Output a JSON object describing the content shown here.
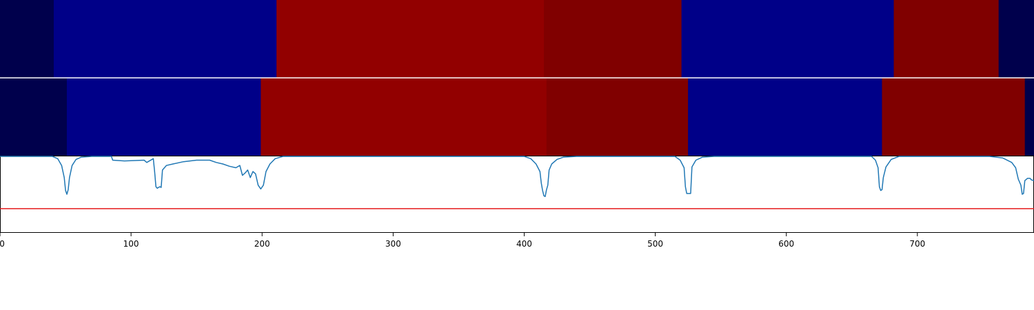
{
  "chart_data": [
    {
      "type": "heatmap",
      "title": "",
      "xlim": [
        0,
        789
      ],
      "segments": [
        {
          "start": 0,
          "end": 41,
          "color": "#00004c"
        },
        {
          "start": 41,
          "end": 211,
          "color": "#000088"
        },
        {
          "start": 211,
          "end": 415,
          "color": "#920000"
        },
        {
          "start": 415,
          "end": 520,
          "color": "#800000"
        },
        {
          "start": 520,
          "end": 682,
          "color": "#000088"
        },
        {
          "start": 682,
          "end": 762,
          "color": "#800000"
        },
        {
          "start": 762,
          "end": 789,
          "color": "#00004c"
        }
      ]
    },
    {
      "type": "heatmap",
      "title": "",
      "xlim": [
        0,
        789
      ],
      "segments": [
        {
          "start": 0,
          "end": 51,
          "color": "#00004c"
        },
        {
          "start": 51,
          "end": 199,
          "color": "#000088"
        },
        {
          "start": 199,
          "end": 417,
          "color": "#920000"
        },
        {
          "start": 417,
          "end": 525,
          "color": "#800000"
        },
        {
          "start": 525,
          "end": 673,
          "color": "#000088"
        },
        {
          "start": 673,
          "end": 782,
          "color": "#800000"
        },
        {
          "start": 782,
          "end": 789,
          "color": "#00004c"
        }
      ]
    },
    {
      "type": "line",
      "title": "",
      "xlabel": "",
      "ylabel": "",
      "xlim": [
        0,
        789
      ],
      "ylim": [
        0,
        1
      ],
      "grid": false,
      "x_ticks": [
        "0",
        "100",
        "200",
        "300",
        "400",
        "500",
        "600",
        "700"
      ],
      "x_tick_values": [
        0,
        100,
        200,
        300,
        400,
        500,
        600,
        700
      ],
      "threshold": 0.31,
      "threshold_color": "#e41a1c",
      "series": [
        {
          "color": "#1f77b4",
          "points": [
            [
              0,
              1.0
            ],
            [
              40,
              1.0
            ],
            [
              44,
              0.97
            ],
            [
              47,
              0.88
            ],
            [
              49,
              0.72
            ],
            [
              50,
              0.55
            ],
            [
              51,
              0.5
            ],
            [
              52,
              0.56
            ],
            [
              53,
              0.72
            ],
            [
              55,
              0.88
            ],
            [
              58,
              0.96
            ],
            [
              62,
              0.99
            ],
            [
              70,
              1.0
            ],
            [
              85,
              1.0
            ],
            [
              86,
              0.95
            ],
            [
              95,
              0.94
            ],
            [
              110,
              0.95
            ],
            [
              112,
              0.92
            ],
            [
              117,
              0.97
            ],
            [
              118,
              0.8
            ],
            [
              119,
              0.6
            ],
            [
              120,
              0.58
            ],
            [
              122,
              0.6
            ],
            [
              123,
              0.59
            ],
            [
              124,
              0.82
            ],
            [
              127,
              0.88
            ],
            [
              132,
              0.9
            ],
            [
              140,
              0.93
            ],
            [
              150,
              0.95
            ],
            [
              160,
              0.95
            ],
            [
              165,
              0.92
            ],
            [
              170,
              0.9
            ],
            [
              175,
              0.87
            ],
            [
              180,
              0.85
            ],
            [
              183,
              0.88
            ],
            [
              185,
              0.75
            ],
            [
              187,
              0.78
            ],
            [
              189,
              0.82
            ],
            [
              191,
              0.72
            ],
            [
              193,
              0.8
            ],
            [
              195,
              0.77
            ],
            [
              197,
              0.62
            ],
            [
              199,
              0.57
            ],
            [
              201,
              0.62
            ],
            [
              203,
              0.8
            ],
            [
              206,
              0.9
            ],
            [
              210,
              0.97
            ],
            [
              216,
              1.0
            ],
            [
              380,
              1.0
            ],
            [
              400,
              1.0
            ],
            [
              405,
              0.97
            ],
            [
              409,
              0.9
            ],
            [
              412,
              0.8
            ],
            [
              413,
              0.65
            ],
            [
              414,
              0.55
            ],
            [
              415,
              0.48
            ],
            [
              416,
              0.47
            ],
            [
              417,
              0.56
            ],
            [
              418,
              0.62
            ],
            [
              419,
              0.82
            ],
            [
              421,
              0.9
            ],
            [
              425,
              0.96
            ],
            [
              430,
              0.99
            ],
            [
              440,
              1.0
            ],
            [
              515,
              1.0
            ],
            [
              519,
              0.95
            ],
            [
              522,
              0.85
            ],
            [
              523,
              0.6
            ],
            [
              524,
              0.51
            ],
            [
              527,
              0.51
            ],
            [
              528,
              0.86
            ],
            [
              531,
              0.95
            ],
            [
              536,
              0.99
            ],
            [
              545,
              1.0
            ],
            [
              665,
              1.0
            ],
            [
              668,
              0.95
            ],
            [
              670,
              0.85
            ],
            [
              671,
              0.6
            ],
            [
              672,
              0.55
            ],
            [
              673,
              0.56
            ],
            [
              674,
              0.72
            ],
            [
              676,
              0.86
            ],
            [
              680,
              0.96
            ],
            [
              686,
              1.0
            ],
            [
              755,
              1.0
            ],
            [
              765,
              0.98
            ],
            [
              772,
              0.92
            ],
            [
              775,
              0.85
            ],
            [
              777,
              0.7
            ],
            [
              779,
              0.62
            ],
            [
              780,
              0.5
            ],
            [
              781,
              0.51
            ],
            [
              782,
              0.68
            ],
            [
              784,
              0.71
            ],
            [
              786,
              0.71
            ],
            [
              787,
              0.69
            ],
            [
              789,
              0.68
            ]
          ]
        }
      ]
    }
  ]
}
